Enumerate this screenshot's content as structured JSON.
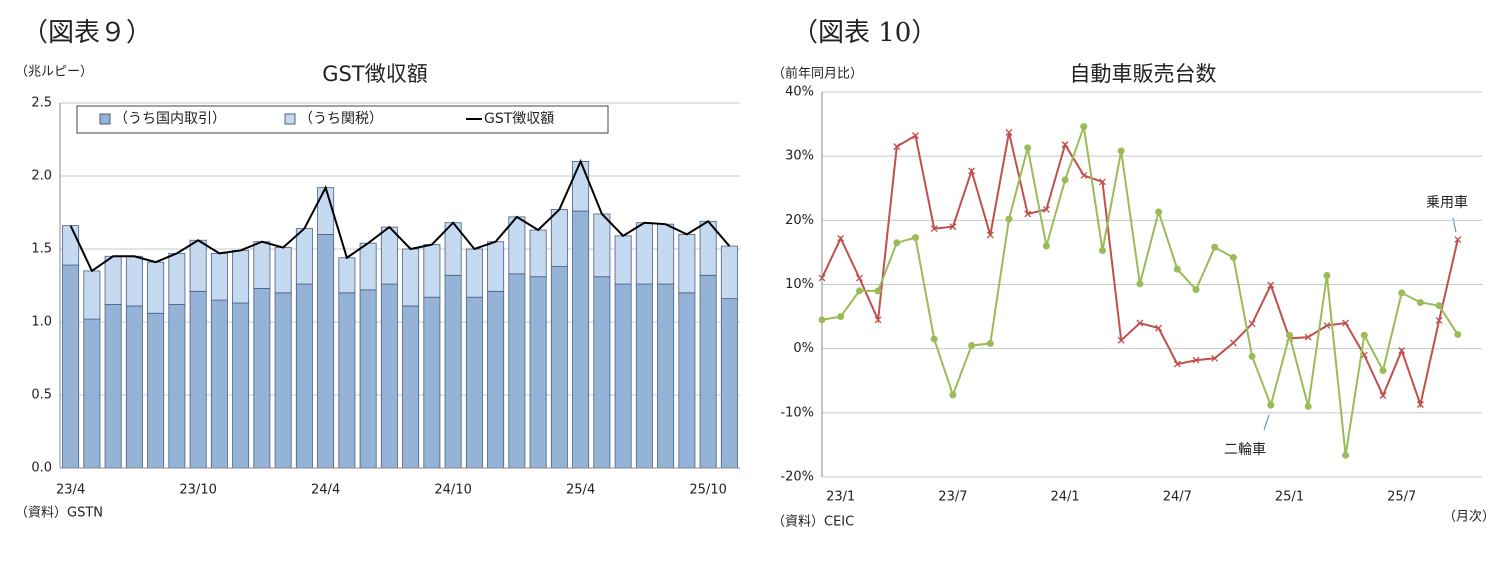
{
  "headings": [
    "（図表９）",
    "（図表 10）"
  ],
  "chart_data": [
    {
      "type": "bar",
      "title": "GST徴収額",
      "y_label": "（兆ルピー）",
      "source": "（資料）GSTN",
      "stacked": true,
      "grid": true,
      "legend": "top",
      "categories": [
        "23/4",
        null,
        null,
        null,
        null,
        null,
        "23/10",
        null,
        null,
        null,
        null,
        null,
        "24/4",
        null,
        null,
        null,
        null,
        null,
        "24/10",
        null,
        null,
        null,
        null,
        null,
        "25/4",
        null,
        null,
        null,
        null,
        null,
        "25/10",
        null
      ],
      "series": [
        {
          "name": "（うち国内取引）",
          "color": "#95b3d7",
          "values": [
            1.39,
            1.02,
            1.12,
            1.11,
            1.06,
            1.12,
            1.21,
            1.15,
            1.13,
            1.23,
            1.2,
            1.26,
            1.6,
            1.2,
            1.22,
            1.26,
            1.11,
            1.17,
            1.32,
            1.17,
            1.21,
            1.33,
            1.31,
            1.38,
            1.76,
            1.31,
            1.26,
            1.26,
            1.26,
            1.2,
            1.32,
            1.16
          ]
        },
        {
          "name": "（うち関税）",
          "color": "#c5d9f1",
          "values": [
            0.27,
            0.33,
            0.33,
            0.34,
            0.35,
            0.35,
            0.35,
            0.32,
            0.36,
            0.32,
            0.31,
            0.38,
            0.32,
            0.24,
            0.32,
            0.39,
            0.39,
            0.36,
            0.36,
            0.33,
            0.34,
            0.39,
            0.32,
            0.39,
            0.34,
            0.43,
            0.33,
            0.42,
            0.41,
            0.4,
            0.37,
            0.36
          ]
        },
        {
          "name": "GST徴収額",
          "type": "line",
          "color": "#000000",
          "values": [
            1.66,
            1.35,
            1.45,
            1.45,
            1.41,
            1.47,
            1.56,
            1.47,
            1.49,
            1.55,
            1.51,
            1.64,
            1.92,
            1.44,
            1.54,
            1.65,
            1.5,
            1.53,
            1.68,
            1.5,
            1.55,
            1.72,
            1.63,
            1.77,
            2.1,
            1.74,
            1.59,
            1.68,
            1.67,
            1.6,
            1.69,
            1.52
          ]
        }
      ],
      "ylim": [
        0,
        2.5
      ],
      "yticks": [
        {
          "value": 0,
          "label": "0.0"
        },
        0.5,
        {
          "value": 1,
          "label": "1.0"
        },
        1.5,
        {
          "value": 2,
          "label": "2.0"
        },
        2.5
      ]
    },
    {
      "type": "line",
      "title": "自動車販売台数",
      "y_label": "（前年同月比）",
      "x_label": "（月次）",
      "source": "（資料）CEIC",
      "grid": true,
      "categories": [
        null,
        "23/1",
        null,
        null,
        null,
        null,
        null,
        "23/7",
        null,
        null,
        null,
        null,
        null,
        "24/1",
        null,
        null,
        null,
        null,
        null,
        "24/7",
        null,
        null,
        null,
        null,
        null,
        "25/1",
        null,
        null,
        null,
        null,
        null,
        "25/7",
        null,
        null,
        null
      ],
      "series": [
        {
          "name": "乗用車",
          "color": "#c0504d",
          "marker": "x",
          "values": [
            11,
            17.2,
            11,
            4.5,
            31.5,
            33.2,
            18.7,
            19,
            27.7,
            17.7,
            33.7,
            21,
            21.7,
            31.8,
            27,
            26,
            1.3,
            4,
            3.2,
            -2.4,
            -1.8,
            -1.5,
            0.9,
            3.9,
            9.9,
            1.6,
            1.8,
            3.6,
            4,
            -1,
            -7.3,
            -0.3,
            -8.7,
            4.4,
            17
          ]
        },
        {
          "name": "二輪車",
          "color": "#9bbb59",
          "marker": "circle",
          "values": [
            4.5,
            5,
            9,
            9,
            16.5,
            17.3,
            1.5,
            -7.2,
            0.5,
            0.8,
            20.2,
            31.3,
            16,
            26.3,
            34.6,
            15.3,
            30.8,
            10.1,
            21.3,
            12.4,
            9.2,
            15.8,
            14.2,
            -1.2,
            -8.8,
            2.1,
            -9,
            11.4,
            -16.6,
            2.1,
            -3.4,
            8.7,
            7.2,
            6.7,
            2.2
          ]
        }
      ],
      "ylim": [
        -20,
        40
      ],
      "yticks": [
        {
          "value": -20,
          "label": "-20%"
        },
        {
          "value": -10,
          "label": "-10%"
        },
        {
          "value": 0,
          "label": "0%"
        },
        {
          "value": 10,
          "label": "10%"
        },
        {
          "value": 20,
          "label": "20%"
        },
        {
          "value": 30,
          "label": "30%"
        },
        {
          "value": 40,
          "label": "40%"
        }
      ]
    }
  ]
}
